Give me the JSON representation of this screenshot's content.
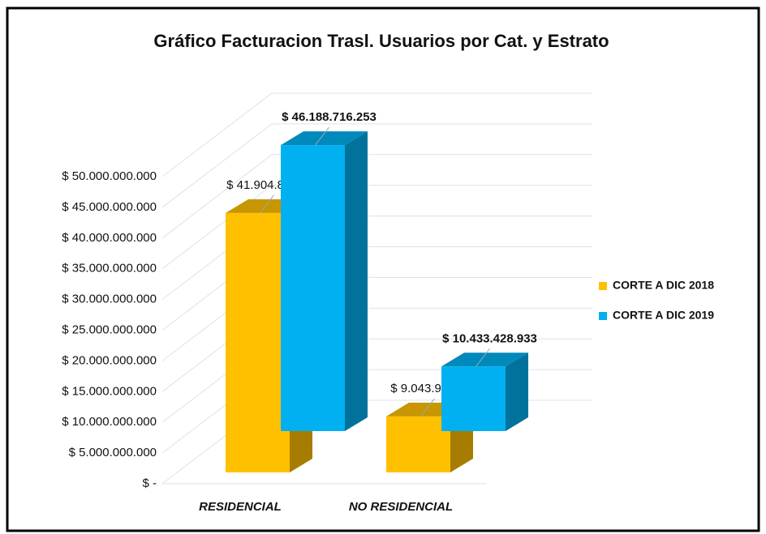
{
  "chart_data": {
    "type": "bar3d",
    "title": "Gráfico Facturacion Trasl. Usuarios por Cat. y Estrato",
    "categories": [
      "RESIDENCIAL",
      "NO RESIDENCIAL"
    ],
    "series": [
      {
        "name": "CORTE A DIC 2018",
        "color": "#FFC000",
        "values": [
          41904815194,
          9043946072
        ],
        "value_labels": [
          "$ 41.904.815.194",
          "$ 9.043.946.072"
        ]
      },
      {
        "name": "CORTE A DIC 2019",
        "color": "#00B0F0",
        "values": [
          46188716253,
          10433428933
        ],
        "value_labels": [
          "$ 46.188.716.253",
          "$ 10.433.428.933"
        ]
      }
    ],
    "ylim": [
      0,
      50000000000
    ],
    "yticks": [
      {
        "value": 0,
        "label": "$ -"
      },
      {
        "value": 5000000000,
        "label": "$ 5.000.000.000"
      },
      {
        "value": 10000000000,
        "label": "$ 10.000.000.000"
      },
      {
        "value": 15000000000,
        "label": "$ 15.000.000.000"
      },
      {
        "value": 20000000000,
        "label": "$ 20.000.000.000"
      },
      {
        "value": 25000000000,
        "label": "$ 25.000.000.000"
      },
      {
        "value": 30000000000,
        "label": "$ 30.000.000.000"
      },
      {
        "value": 35000000000,
        "label": "$ 35.000.000.000"
      },
      {
        "value": 40000000000,
        "label": "$ 40.000.000.000"
      },
      {
        "value": 45000000000,
        "label": "$ 45.000.000.000"
      },
      {
        "value": 50000000000,
        "label": "$ 50.000.000.000"
      }
    ],
    "grid": true,
    "legend": "right"
  }
}
